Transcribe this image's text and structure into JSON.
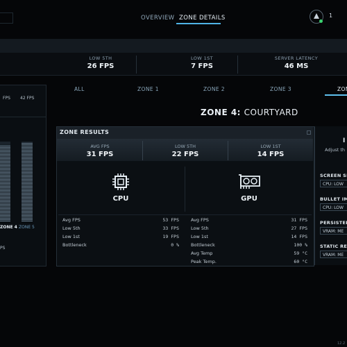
{
  "nav": {
    "tabs": [
      {
        "label": "OVERVIEW"
      },
      {
        "label": "ZONE DETAILS",
        "active": true
      }
    ],
    "user_count": "1"
  },
  "stats": [
    {
      "label": "LOW 5TH",
      "value": "26 FPS"
    },
    {
      "label": "LOW 1ST",
      "value": "7 FPS"
    },
    {
      "label": "SERVER LATENCY",
      "value": "46 MS"
    }
  ],
  "left_panel": {
    "top_labels": [
      "FPS",
      "42 FPS"
    ],
    "zone4_label": "ZONE 4",
    "zone5_label": "ZONE 5",
    "bottom_label": "PS",
    "bars": [
      {
        "fill": 0.95
      },
      {
        "fill": 0.98
      }
    ]
  },
  "zone_tabs": [
    "ALL",
    "ZONE 1",
    "ZONE 2",
    "ZONE 3",
    "ZON"
  ],
  "zone_title_prefix": "ZONE 4:",
  "zone_title_name": "COURTYARD",
  "results": {
    "title": "ZONE RESULTS",
    "metrics": [
      {
        "label": "AVG FPS",
        "value": "31 FPS"
      },
      {
        "label": "LOW 5TH",
        "value": "22 FPS"
      },
      {
        "label": "LOW 1ST",
        "value": "14 FPS"
      }
    ],
    "cpu": {
      "label": "CPU",
      "rows": [
        {
          "name": "Avg FPS",
          "value": "53 FPS"
        },
        {
          "name": "Low 5th",
          "value": "33 FPS"
        },
        {
          "name": "Low 1st",
          "value": "19 FPS"
        },
        {
          "name": "Bottleneck",
          "value": "0 %"
        }
      ]
    },
    "gpu": {
      "label": "GPU",
      "rows": [
        {
          "name": "Avg FPS",
          "value": "31 FPS"
        },
        {
          "name": "Low 5th",
          "value": "27 FPS"
        },
        {
          "name": "Low 1st",
          "value": "14 FPS"
        },
        {
          "name": "Bottleneck",
          "value": "100 %"
        },
        {
          "name": "Avg Temp",
          "value": "59 °C"
        },
        {
          "name": "Peak Temp.",
          "value": "60 °C"
        }
      ]
    }
  },
  "right_panel": {
    "heading_partial": "I",
    "subtitle": "Adjust th",
    "sections": [
      {
        "title": "SCREEN SP",
        "value": "CPU: LOW"
      },
      {
        "title": "BULLET IM",
        "value": "CPU: LOW"
      },
      {
        "title": "PERSISTEN",
        "value": "VRAM: ME"
      },
      {
        "title": "STATIC REF",
        "value": "VRAM: ME"
      }
    ]
  },
  "version": "12.2"
}
